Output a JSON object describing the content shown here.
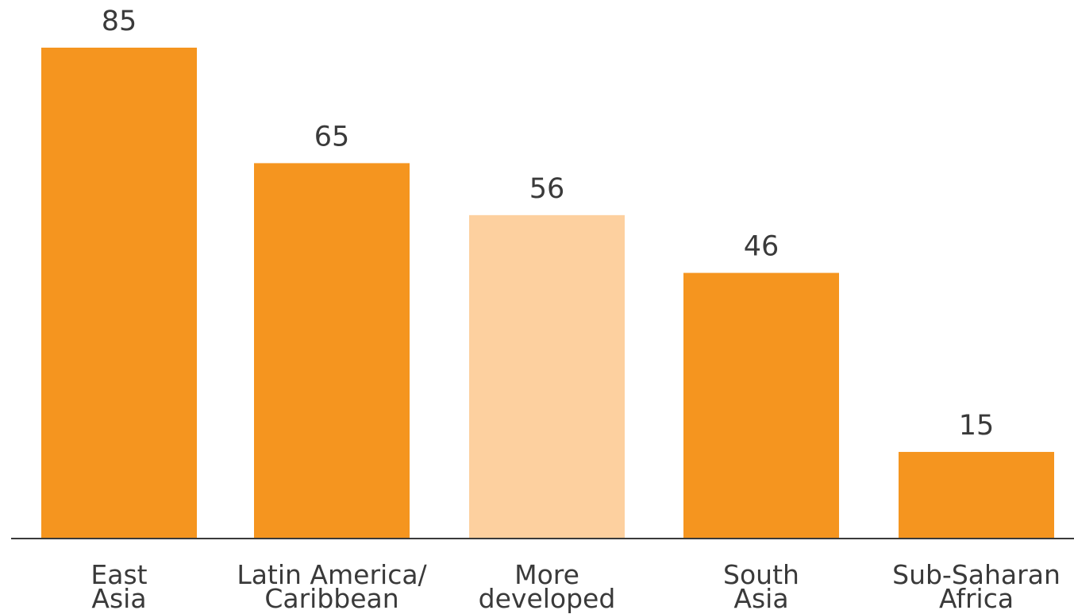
{
  "chart_data": {
    "type": "bar",
    "categories": [
      [
        "East",
        "Asia"
      ],
      [
        "Latin America/",
        "Caribbean"
      ],
      [
        "More",
        "developed"
      ],
      [
        "South",
        "Asia"
      ],
      [
        "Sub-Saharan",
        "Africa"
      ]
    ],
    "values": [
      85,
      65,
      56,
      46,
      15
    ],
    "highlight": [
      false,
      false,
      true,
      false,
      false
    ],
    "colors": {
      "bar": "#f5951f",
      "bar_highlight": "#fdd09f",
      "axis": "#3a3a3a",
      "text": "#3a3a3a"
    },
    "title": "",
    "xlabel": "",
    "ylabel": "",
    "ylim": [
      0,
      85
    ],
    "grid": false,
    "legend": "none"
  }
}
